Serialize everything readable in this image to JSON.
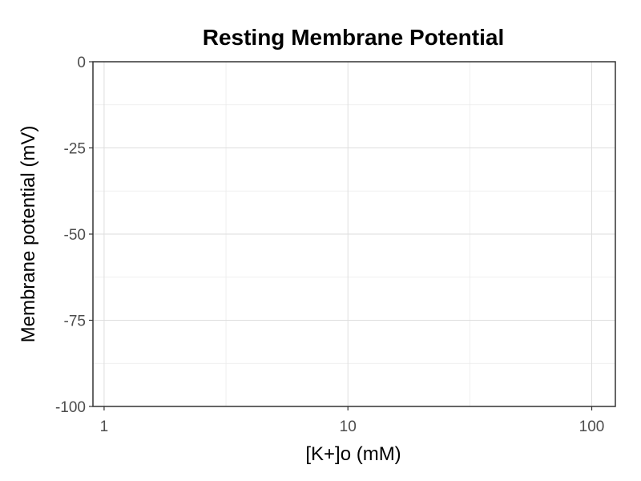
{
  "chart_data": {
    "type": "line",
    "title": "Resting Membrane Potential",
    "xlabel": "[K+]o (mM)",
    "ylabel": "Membrane potential (mV)",
    "x_scale": "log10",
    "xlim": [
      0.9,
      125
    ],
    "ylim": [
      -100,
      0
    ],
    "x_ticks": [
      1,
      10,
      100
    ],
    "x_tick_labels": [
      "1",
      "10",
      "100"
    ],
    "x_minor_ticks": [
      3.1623,
      31.623
    ],
    "y_ticks": [
      0,
      -25,
      -50,
      -75,
      -100
    ],
    "y_tick_labels": [
      "0",
      "-25",
      "-50",
      "-75",
      "-100"
    ],
    "y_minor_ticks": [
      -12.5,
      -37.5,
      -62.5,
      -87.5
    ],
    "grid": true,
    "series": []
  }
}
